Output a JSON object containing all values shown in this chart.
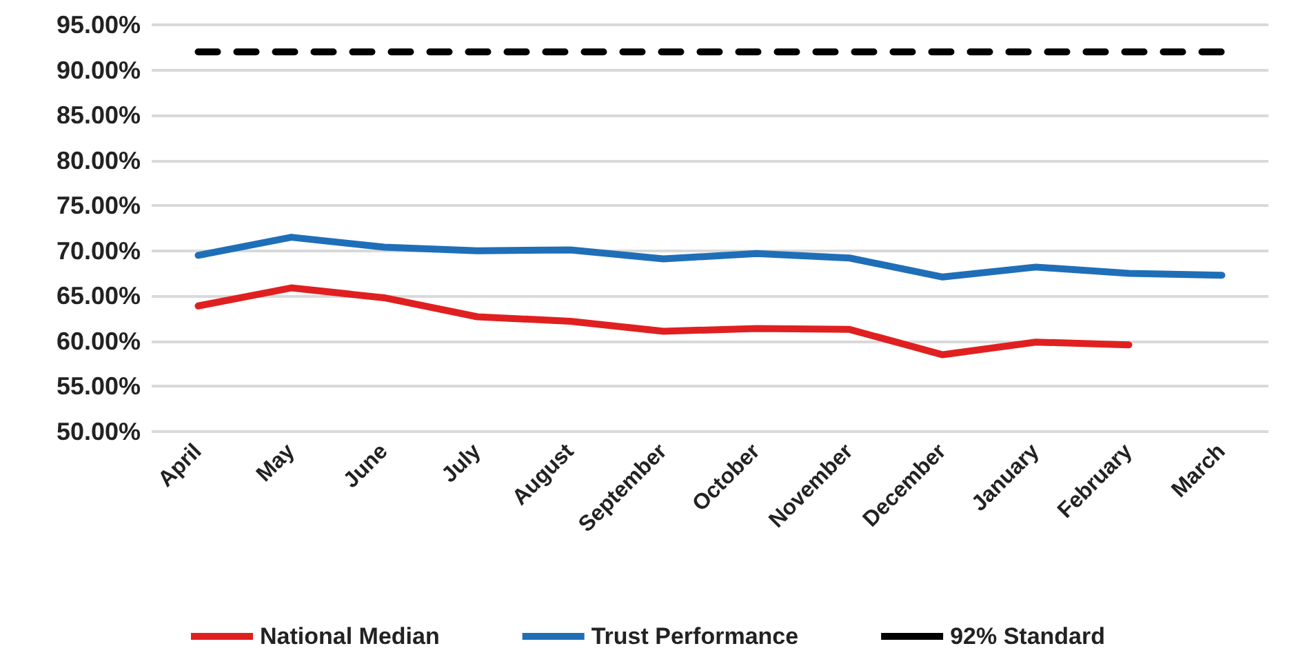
{
  "chart_data": {
    "type": "line",
    "categories": [
      "April",
      "May",
      "June",
      "July",
      "August",
      "September",
      "October",
      "November",
      "December",
      "January",
      "February",
      "March"
    ],
    "series": [
      {
        "name": "National Median",
        "color": "#e02020",
        "values": [
          63.9,
          65.9,
          64.8,
          62.7,
          62.2,
          61.1,
          61.4,
          61.3,
          58.5,
          59.9,
          59.6,
          null
        ]
      },
      {
        "name": "Trust Performance",
        "color": "#1f6fb8",
        "values": [
          69.5,
          71.5,
          70.4,
          70.0,
          70.1,
          69.1,
          69.7,
          69.2,
          67.1,
          68.2,
          67.5,
          67.3
        ]
      },
      {
        "name": "92% Standard",
        "color": "#000000",
        "line_style": "dashed",
        "values": [
          92,
          92,
          92,
          92,
          92,
          92,
          92,
          92,
          92,
          92,
          92,
          92
        ]
      }
    ],
    "ylim": [
      50,
      95
    ],
    "yticks": [
      {
        "value": 50,
        "label": "50.00%"
      },
      {
        "value": 55,
        "label": "55.00%"
      },
      {
        "value": 60,
        "label": "60.00%"
      },
      {
        "value": 65,
        "label": "65.00%"
      },
      {
        "value": 70,
        "label": "70.00%"
      },
      {
        "value": 75,
        "label": "75.00%"
      },
      {
        "value": 80,
        "label": "80.00%"
      },
      {
        "value": 85,
        "label": "85.00%"
      },
      {
        "value": 90,
        "label": "90.00%"
      },
      {
        "value": 95,
        "label": "95.00%"
      }
    ],
    "grid": "y",
    "legend": "bottom",
    "marker": "none",
    "line_style": "solid"
  }
}
